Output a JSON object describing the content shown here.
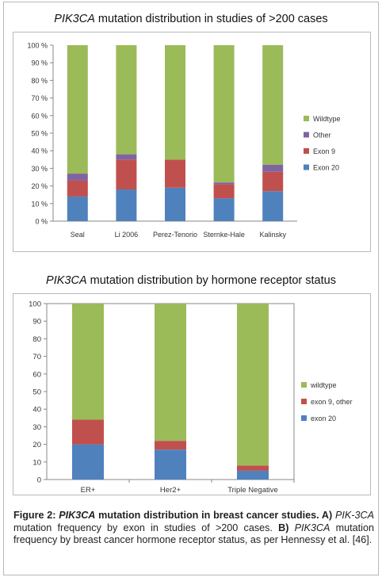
{
  "chart_data": [
    {
      "type": "bar",
      "stacked": true,
      "title_prefix_italic": "PIK3CA",
      "title_rest": " mutation distribution in studies of >200 cases",
      "categories": [
        "Seal",
        "Li 2006",
        "Perez-Tenorio",
        "Sternke-Hale",
        "Kalinsky"
      ],
      "ylim": [
        0,
        100
      ],
      "yticks": [
        "0 %",
        "10 %",
        "20 %",
        "30 %",
        "40 %",
        "50 %",
        "60 %",
        "70 %",
        "80 %",
        "90 %",
        "100 %"
      ],
      "series": [
        {
          "name": "Exon 20",
          "color": "#4f81bd",
          "values": [
            14,
            18,
            19,
            13,
            17
          ]
        },
        {
          "name": "Exon 9",
          "color": "#c0504d",
          "values": [
            9,
            17,
            16,
            8,
            11
          ]
        },
        {
          "name": "Other",
          "color": "#8064a2",
          "values": [
            4,
            3,
            0,
            1,
            4
          ]
        },
        {
          "name": "Wildtype",
          "color": "#9bbb59",
          "values": [
            73,
            62,
            65,
            78,
            68
          ]
        }
      ],
      "legend_position": "right"
    },
    {
      "type": "bar",
      "stacked": true,
      "title_prefix_italic": "PIK3CA",
      "title_rest": " mutation distribution by hormone receptor status",
      "categories": [
        "ER+",
        "Her2+",
        "Triple Negative"
      ],
      "ylim": [
        0,
        100
      ],
      "yticks": [
        "0",
        "10",
        "20",
        "30",
        "40",
        "50",
        "60",
        "70",
        "80",
        "90",
        "100"
      ],
      "series": [
        {
          "name": "exon 20",
          "color": "#4f81bd",
          "values": [
            20,
            17,
            5
          ]
        },
        {
          "name": "exon 9, other",
          "color": "#c0504d",
          "values": [
            14,
            5,
            3
          ]
        },
        {
          "name": "wildtype",
          "color": "#9bbb59",
          "values": [
            66,
            78,
            92
          ]
        }
      ],
      "legend_position": "right"
    }
  ],
  "caption": {
    "figure_label": "Figure 2: ",
    "title_italic": "PIK3CA",
    "title_rest": " mutation distribution in breast cancer studies.",
    "part_a_label": " A) ",
    "part_a_italic": "PIK-3CA",
    "part_a_text": " mutation frequency by exon in studies of >200 cases.",
    "part_b_label": " B) ",
    "part_b_italic": "PIK3CA",
    "part_b_text": " mutation frequency by breast cancer hormone receptor status, as per Hennessy et al. [46]."
  }
}
